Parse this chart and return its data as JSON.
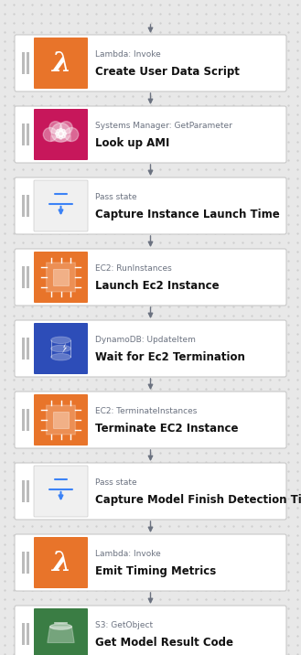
{
  "background_color": "#e8e8e8",
  "dot_color": "#cccccc",
  "steps": [
    {
      "subtitle": "Lambda: Invoke",
      "title": "Create User Data Script",
      "icon_color": "#e8742a",
      "icon_type": "lambda"
    },
    {
      "subtitle": "Systems Manager: GetParameter",
      "title": "Look up AMI",
      "icon_color": "#c7175b",
      "icon_type": "systems_manager"
    },
    {
      "subtitle": "Pass state",
      "title": "Capture Instance Launch Time",
      "icon_color": "#aaaaaa",
      "icon_type": "pass"
    },
    {
      "subtitle": "EC2: RunInstances",
      "title": "Launch Ec2 Instance",
      "icon_color": "#e8742a",
      "icon_type": "ec2"
    },
    {
      "subtitle": "DynamoDB: UpdateItem",
      "title": "Wait for Ec2 Termination",
      "icon_color": "#2d4db8",
      "icon_type": "dynamodb"
    },
    {
      "subtitle": "EC2: TerminateInstances",
      "title": "Terminate EC2 Instance",
      "icon_color": "#e8742a",
      "icon_type": "ec2"
    },
    {
      "subtitle": "Pass state",
      "title": "Capture Model Finish Detection Time",
      "icon_color": "#aaaaaa",
      "icon_type": "pass"
    },
    {
      "subtitle": "Lambda: Invoke",
      "title": "Emit Timing Metrics",
      "icon_color": "#e8742a",
      "icon_type": "lambda"
    },
    {
      "subtitle": "S3: GetObject",
      "title": "Get Model Result Code",
      "icon_color": "#3a7d44",
      "icon_type": "s3"
    }
  ],
  "arrow_color": "#6b7280",
  "box_border_color": "#c8c8c8",
  "box_bg_color": "#ffffff",
  "parallel_bar_color": "#bbbbbb",
  "subtitle_color": "#6b7280",
  "title_color": "#111111",
  "subtitle_fontsize": 6.5,
  "title_fontsize": 8.5,
  "pass_icon_color": "#3b82f6"
}
